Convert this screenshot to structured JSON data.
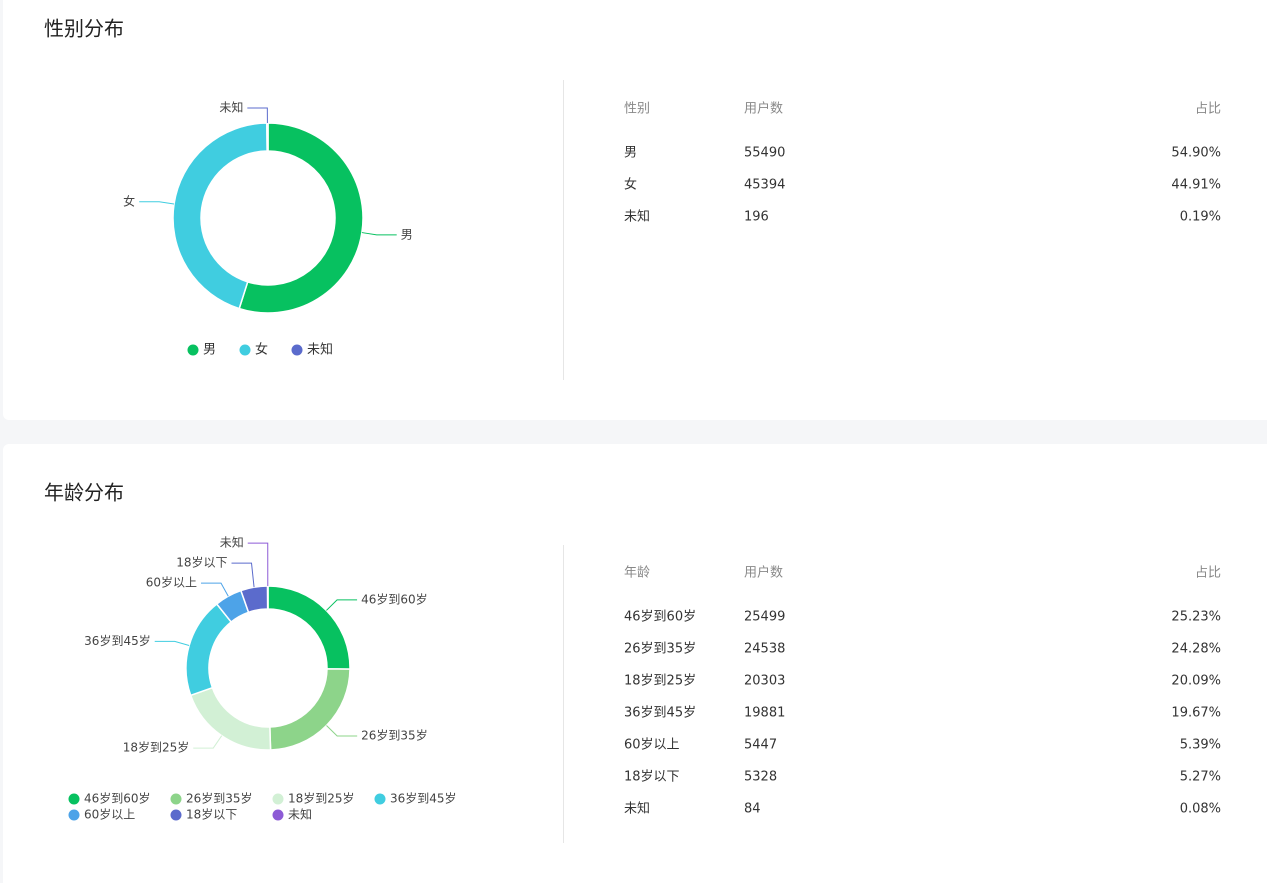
{
  "chart_data": [
    {
      "type": "pie",
      "title": "性别分布",
      "categories": [
        "男",
        "女",
        "未知"
      ],
      "values": [
        55490,
        45394,
        196
      ],
      "colors": [
        "#07c160",
        "#40cde0",
        "#5b6bcc"
      ],
      "legend": "bottom"
    },
    {
      "type": "pie",
      "title": "年龄分布",
      "categories": [
        "46岁到60岁",
        "26岁到35岁",
        "18岁到25岁",
        "36岁到45岁",
        "60岁以上",
        "18岁以下",
        "未知"
      ],
      "values": [
        25499,
        24538,
        20303,
        19881,
        5447,
        5328,
        84
      ],
      "colors": [
        "#07c160",
        "#8dd48a",
        "#d2f0d5",
        "#40cde0",
        "#4da3e8",
        "#5b6bcc",
        "#8d5bd6"
      ],
      "legend": "bottom"
    }
  ],
  "tables": [
    {
      "header": [
        "性别",
        "用户数",
        "占比"
      ],
      "rows": [
        [
          "男",
          "55490",
          "54.90%"
        ],
        [
          "女",
          "45394",
          "44.91%"
        ],
        [
          "未知",
          "196",
          "0.19%"
        ]
      ]
    },
    {
      "header": [
        "年龄",
        "用户数",
        "占比"
      ],
      "rows": [
        [
          "46岁到60岁",
          "25499",
          "25.23%"
        ],
        [
          "26岁到35岁",
          "24538",
          "24.28%"
        ],
        [
          "18岁到25岁",
          "20303",
          "20.09%"
        ],
        [
          "36岁到45岁",
          "19881",
          "19.67%"
        ],
        [
          "60岁以上",
          "5447",
          "5.39%"
        ],
        [
          "18岁以下",
          "5328",
          "5.27%"
        ],
        [
          "未知",
          "84",
          "0.08%"
        ]
      ]
    }
  ]
}
